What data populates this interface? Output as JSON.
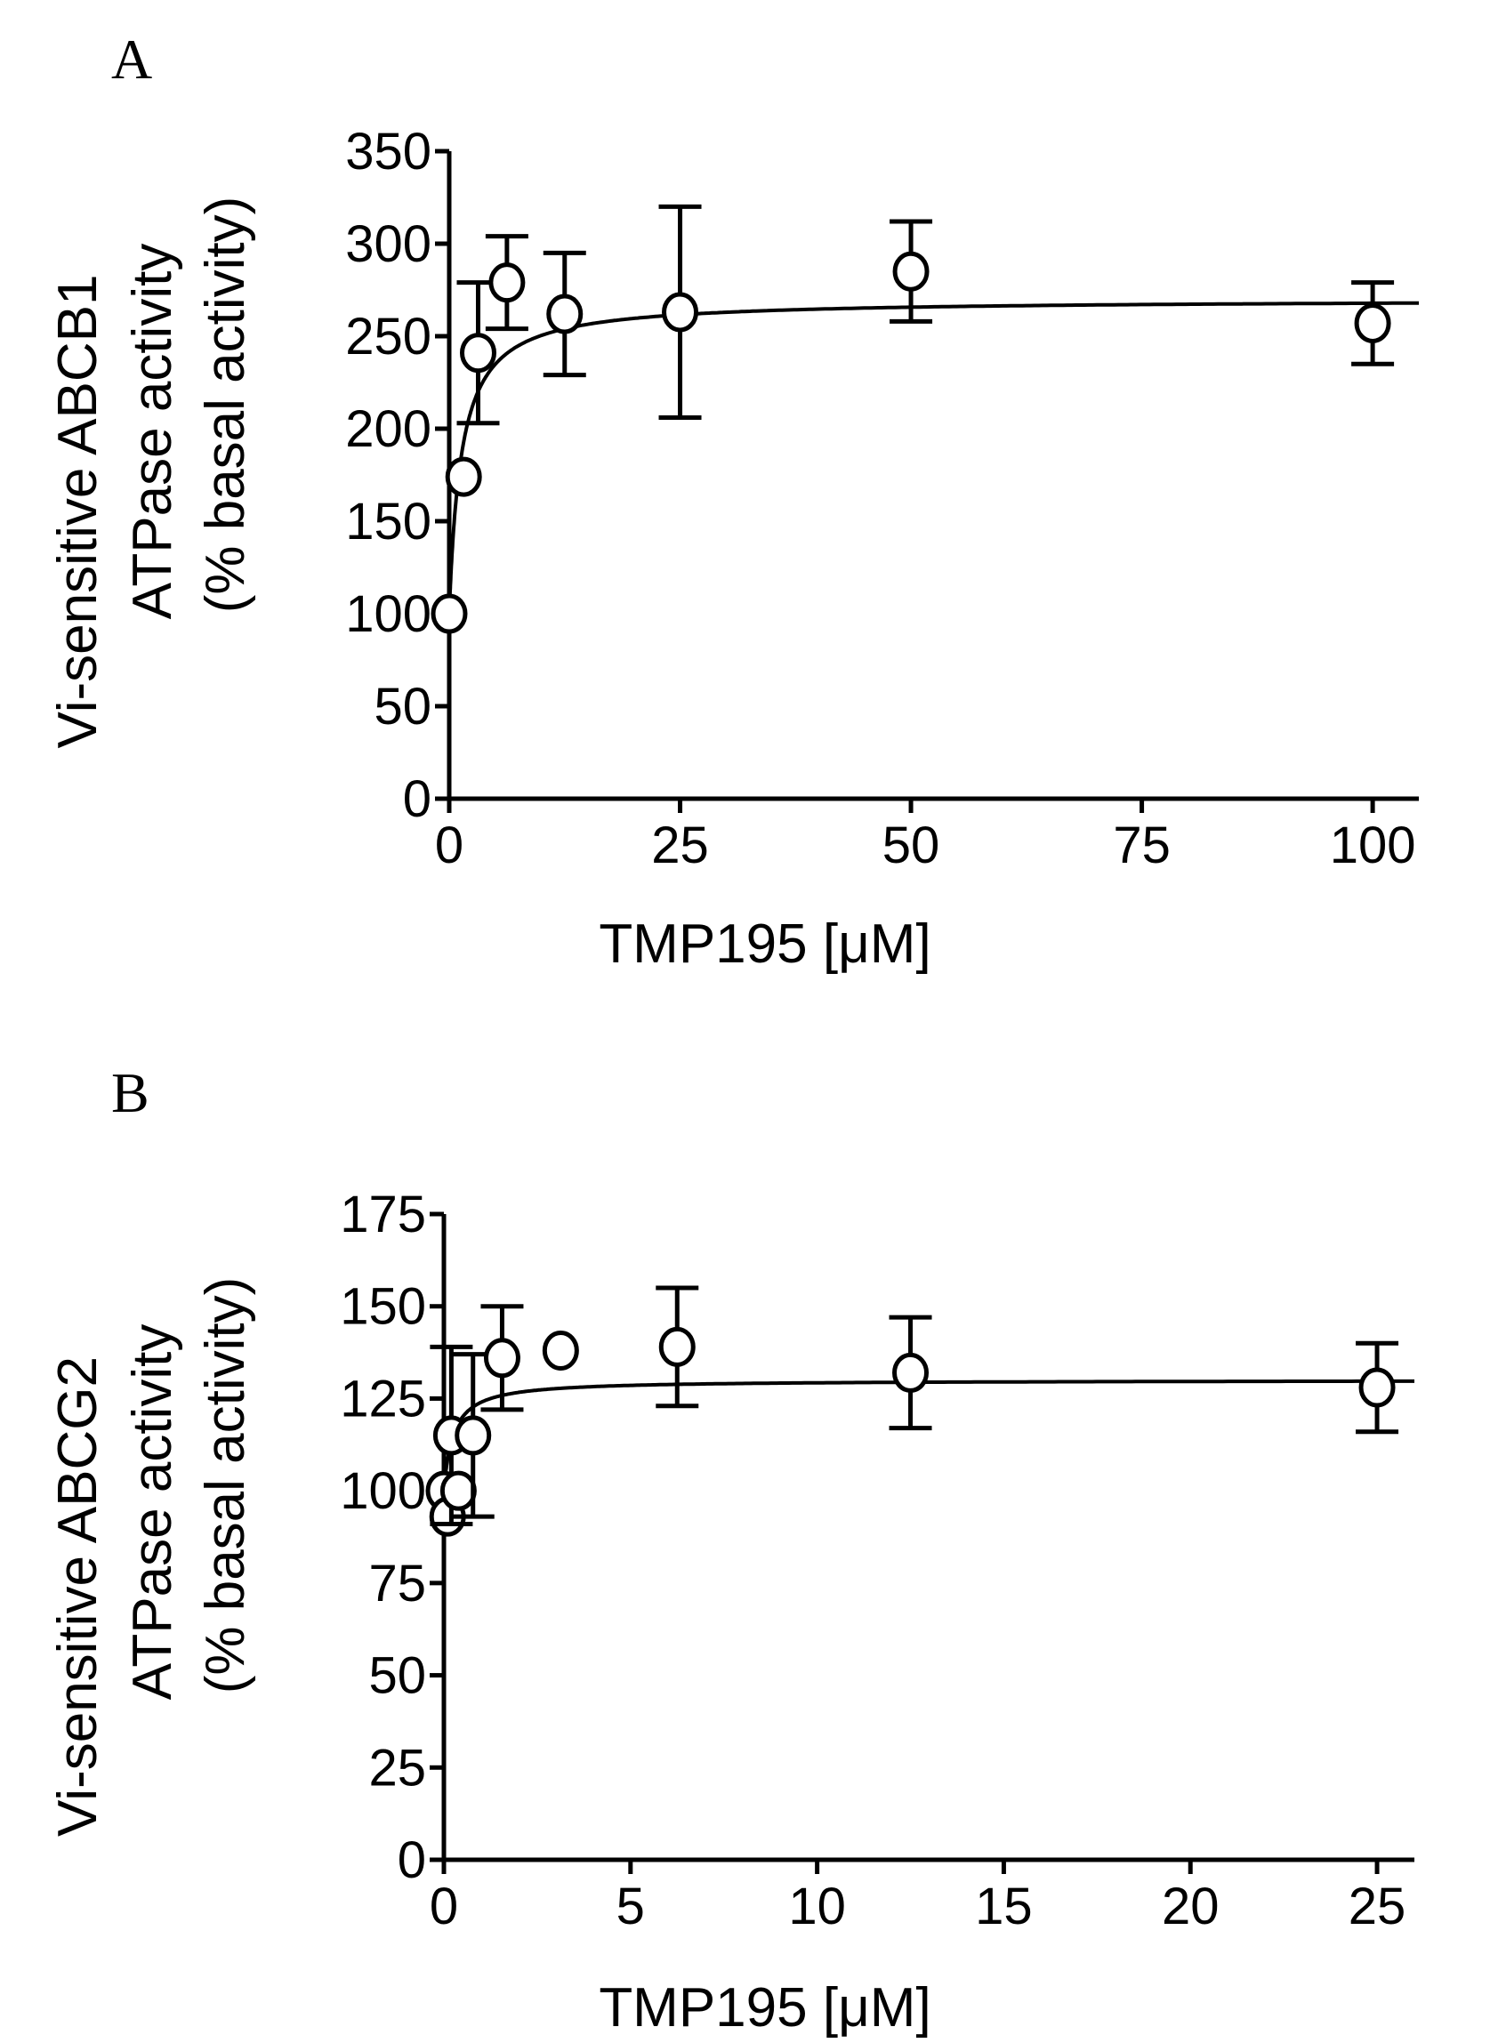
{
  "chart_data": [
    {
      "panel": "A",
      "type": "scatter",
      "ylabel_lines": [
        "Vi-sensitive ABCB1",
        "ATPase activity",
        "(% basal activity)"
      ],
      "xlabel": "TMP195 [μM]",
      "xlim": [
        0,
        105
      ],
      "ylim": [
        0,
        350
      ],
      "xticks": [
        0,
        25,
        50,
        75,
        100
      ],
      "yticks": [
        0,
        50,
        100,
        150,
        200,
        250,
        300,
        350
      ],
      "x_tick_labels": [
        "0",
        "25",
        "50",
        "75",
        "100"
      ],
      "y_tick_labels": [
        "0",
        "50",
        "100",
        "150",
        "200",
        "250",
        "300",
        "350"
      ],
      "series": [
        {
          "name": "ABCB1",
          "x": [
            0,
            1.56,
            3.13,
            6.25,
            12.5,
            25,
            50,
            100
          ],
          "y": [
            100,
            174,
            241,
            279,
            262,
            263,
            285,
            257
          ],
          "yerr": [
            0,
            0,
            38,
            25,
            33,
            57,
            27,
            22
          ]
        }
      ],
      "fit": {
        "model": "hyperbolic",
        "baseline": 100,
        "vmax": 170,
        "km": 1.3
      }
    },
    {
      "panel": "B",
      "type": "scatter",
      "ylabel_lines": [
        "Vi-sensitive ABCG2",
        "ATPase activity",
        "(% basal activity)"
      ],
      "xlabel": "TMP195 [μM]",
      "xlim": [
        0,
        26
      ],
      "ylim": [
        0,
        175
      ],
      "xticks": [
        0,
        5,
        10,
        15,
        20,
        25
      ],
      "yticks": [
        0,
        25,
        50,
        75,
        100,
        125,
        150,
        175
      ],
      "x_tick_labels": [
        "0",
        "5",
        "10",
        "15",
        "20",
        "25"
      ],
      "y_tick_labels": [
        "0",
        "25",
        "50",
        "75",
        "100",
        "125",
        "150",
        "175"
      ],
      "series": [
        {
          "name": "ABCG2",
          "x": [
            0,
            0.1,
            0.2,
            0.39,
            0.78,
            1.56,
            3.13,
            6.25,
            12.5,
            25
          ],
          "y": [
            100,
            93,
            115,
            100,
            115,
            136,
            138,
            139,
            132,
            128
          ],
          "yerr": [
            0,
            0,
            24,
            0,
            22,
            14,
            0,
            16,
            15,
            12
          ]
        }
      ],
      "fit": {
        "model": "hyperbolic",
        "baseline": 100,
        "vmax": 30,
        "km": 0.25
      }
    }
  ]
}
